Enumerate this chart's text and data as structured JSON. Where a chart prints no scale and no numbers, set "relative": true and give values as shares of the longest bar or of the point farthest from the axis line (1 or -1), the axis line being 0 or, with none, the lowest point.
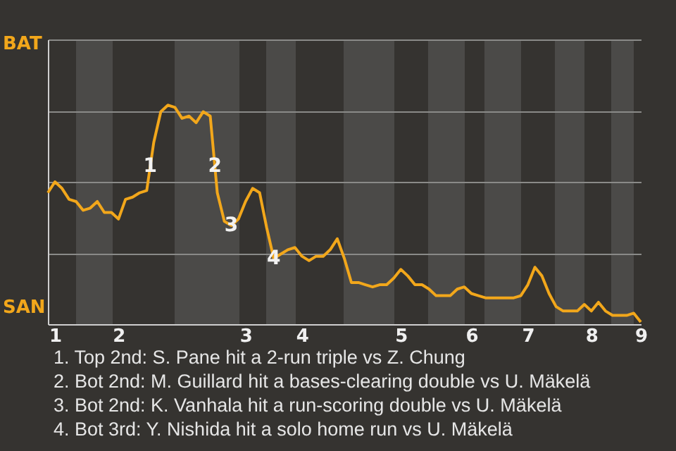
{
  "chart_data": {
    "type": "line",
    "relative": true,
    "categories": [
      null,
      "1",
      null,
      null,
      null,
      null,
      null,
      null,
      null,
      null,
      "2",
      null,
      null,
      null,
      null,
      null,
      null,
      null,
      null,
      null,
      null,
      null,
      null,
      null,
      null,
      null,
      null,
      null,
      "3",
      null,
      null,
      null,
      null,
      null,
      null,
      null,
      "4",
      null,
      null,
      null,
      null,
      null,
      null,
      null,
      null,
      null,
      null,
      null,
      null,
      null,
      "5",
      null,
      null,
      null,
      null,
      null,
      null,
      null,
      null,
      null,
      "6",
      null,
      null,
      null,
      null,
      null,
      null,
      null,
      "7",
      null,
      null,
      null,
      null,
      null,
      null,
      null,
      null,
      "8",
      null,
      null,
      null,
      null,
      null,
      null,
      "9"
    ],
    "series": [
      {
        "color": "#f2a71b",
        "values": [
          0.6,
          0.65,
          0.62,
          0.57,
          0.56,
          0.52,
          0.53,
          0.56,
          0.51,
          0.51,
          0.48,
          0.57,
          0.58,
          0.6,
          0.61,
          0.83,
          0.97,
          1,
          0.99,
          0.94,
          0.95,
          0.92,
          0.97,
          0.95,
          0.6,
          0.47,
          0.45,
          0.48,
          0.56,
          0.62,
          0.6,
          0.44,
          0.3,
          0.32,
          0.34,
          0.35,
          0.31,
          0.29,
          0.31,
          0.31,
          0.34,
          0.39,
          0.3,
          0.19,
          0.19,
          0.18,
          0.17,
          0.18,
          0.18,
          0.21,
          0.25,
          0.22,
          0.18,
          0.18,
          0.16,
          0.13,
          0.13,
          0.13,
          0.16,
          0.17,
          0.14,
          0.13,
          0.12,
          0.12,
          0.12,
          0.12,
          0.12,
          0.13,
          0.18,
          0.26,
          0.22,
          0.14,
          0.08,
          0.06,
          0.06,
          0.06,
          0.09,
          0.06,
          0.1,
          0.06,
          0.04,
          0.04,
          0.04,
          0.05,
          0.01
        ]
      }
    ],
    "grid": "y",
    "annotations": [
      {
        "text": "1",
        "y": 0.72
      },
      {
        "text": "2",
        "y": 0.72
      },
      {
        "text": "3",
        "y": 0.45
      },
      {
        "text": "4",
        "y": 0.3
      },
      "BAT",
      "SAN",
      "1. Top 2nd: S. Pane hit a 2-run triple vs Z. Chung",
      "2. Bot 2nd: M. Guillard hit a bases-clearing double vs U. Mäkelä",
      "3. Bot 2nd: K. Vanhala hit a run-scoring double vs U. Mäkelä",
      "4. Bot 3rd: Y. Nishida hit a solo home run vs U. Mäkelä"
    ]
  }
}
